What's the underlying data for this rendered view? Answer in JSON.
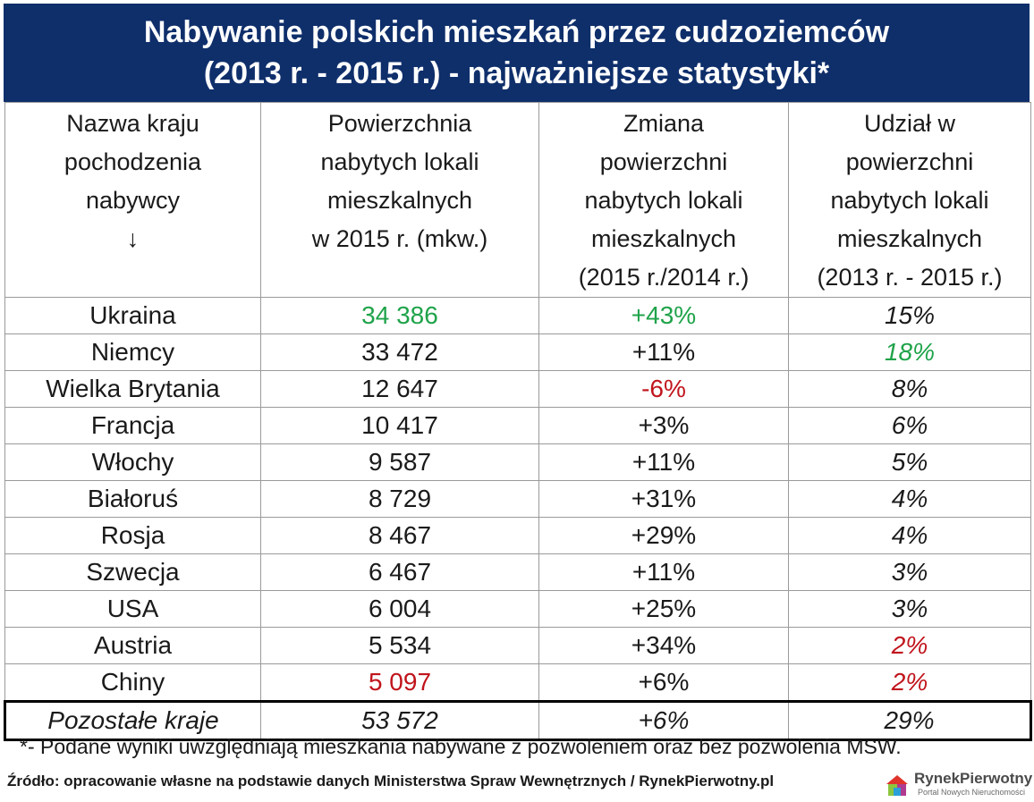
{
  "title": {
    "line1": "Nabywanie polskich mieszkań przez cudzoziemców",
    "line2": "(2013 r. - 2015 r.) - najważniejsze statystyki*"
  },
  "headers": [
    [
      "Nazwa kraju",
      "pochodzenia",
      "nabywcy",
      "↓"
    ],
    [
      "Powierzchnia",
      "nabytych lokali",
      "mieszkalnych",
      "w 2015 r. (mkw.)"
    ],
    [
      "Zmiana",
      "powierzchni",
      "nabytych lokali",
      "mieszkalnych",
      "(2015 r./2014 r.)"
    ],
    [
      "Udział w",
      "powierzchni",
      "nabytych lokali",
      "mieszkalnych",
      "(2013 r. - 2015 r.)"
    ]
  ],
  "rows": [
    {
      "country": "Ukraina",
      "area": "34 386",
      "change": "+43%",
      "share": "15%"
    },
    {
      "country": "Niemcy",
      "area": "33 472",
      "change": "+11%",
      "share": "18%"
    },
    {
      "country": "Wielka Brytania",
      "area": "12 647",
      "change": "-6%",
      "share": "8%"
    },
    {
      "country": "Francja",
      "area": "10 417",
      "change": "+3%",
      "share": "6%"
    },
    {
      "country": "Włochy",
      "area": "9 587",
      "change": "+11%",
      "share": "5%"
    },
    {
      "country": "Białoruś",
      "area": "8 729",
      "change": "+31%",
      "share": "4%"
    },
    {
      "country": "Rosja",
      "area": "8 467",
      "change": "+29%",
      "share": "4%"
    },
    {
      "country": "Szwecja",
      "area": "6 467",
      "change": "+11%",
      "share": "3%"
    },
    {
      "country": "USA",
      "area": "6 004",
      "change": "+25%",
      "share": "3%"
    },
    {
      "country": "Austria",
      "area": "5 534",
      "change": "+34%",
      "share": "2%"
    },
    {
      "country": "Chiny",
      "area": "5 097",
      "change": "+6%",
      "share": "2%"
    }
  ],
  "total": {
    "country": "Pozostałe kraje",
    "area": "53 572",
    "change": "+6%",
    "share": "29%"
  },
  "note": "*- Podane wyniki uwzględniają mieszkania nabywane z pozwoleniem oraz bez pozwolenia MSW.",
  "source": "Źródło: opracowanie własne na podstawie danych Ministerstwa Spraw Wewnętrznych / RynekPierwotny.pl",
  "logo": {
    "name": "RynekPierwotny",
    "tagline": "Portal Nowych Nieruchomości",
    "icon": "house-icon"
  },
  "colors": {
    "header_bg": "#0f2f6b",
    "highlight_high": "#1fa34a",
    "highlight_low": "#c0141c"
  }
}
